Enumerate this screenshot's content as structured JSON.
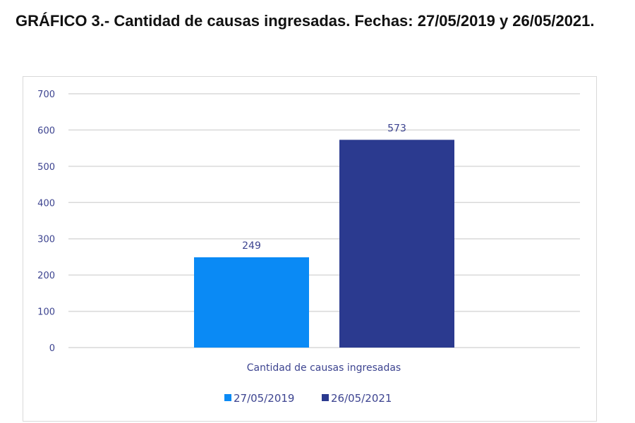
{
  "title": "GRÁFICO 3.- Cantidad de causas ingresadas. Fechas: 27/05/2019 y 26/05/2021.",
  "chart_data": {
    "type": "bar",
    "title": "",
    "categories": [
      "Cantidad de causas ingresadas"
    ],
    "series": [
      {
        "name": "27/05/2019",
        "values": [
          249
        ],
        "color": "#0a8af5"
      },
      {
        "name": "26/05/2021",
        "values": [
          573
        ],
        "color": "#2b3a8f"
      }
    ],
    "yticks": [
      0,
      100,
      200,
      300,
      400,
      500,
      600,
      700
    ],
    "ylim": [
      0,
      700
    ],
    "grid": true,
    "data_labels": true,
    "legend": "bottom"
  }
}
